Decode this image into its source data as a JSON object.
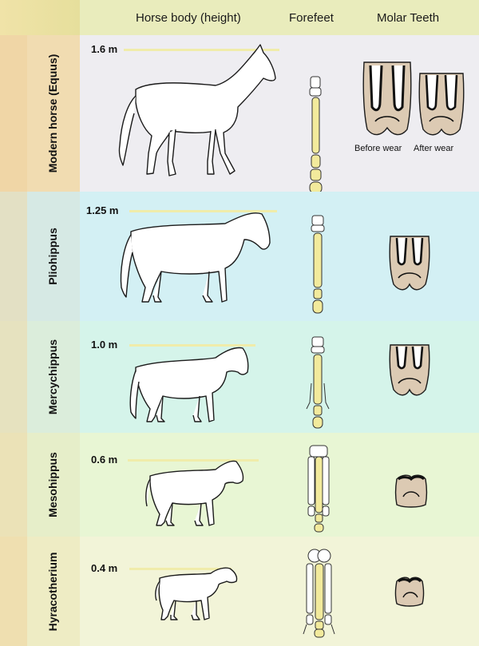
{
  "header": {
    "body_label": "Horse body (height)",
    "forefeet_label": "Forefeet",
    "molar_label": "Molar Teeth"
  },
  "colors": {
    "header": "#e9ecbc",
    "row_modern": "#eeedf1",
    "row_pliohippus": "#d3f0f4",
    "row_mercychippus": "#d5f4ea",
    "row_mesohippus": "#e8f6d4",
    "row_hyracotherium": "#f2f4d8",
    "side_tan": "#f0d9a4",
    "bone": "#f2ea9c",
    "tooth": "#dccab3"
  },
  "rows": [
    {
      "name": "Modern horse (Equus)",
      "height": "1.6 m",
      "before_wear": "Before wear",
      "after_wear": "After wear"
    },
    {
      "name": "Pliohippus",
      "height": "1.25 m"
    },
    {
      "name": "Mercychippus",
      "height": "1.0 m"
    },
    {
      "name": "Mesohippus",
      "height": "0.6 m"
    },
    {
      "name": "Hyracotherium",
      "height": "0.4 m"
    }
  ]
}
